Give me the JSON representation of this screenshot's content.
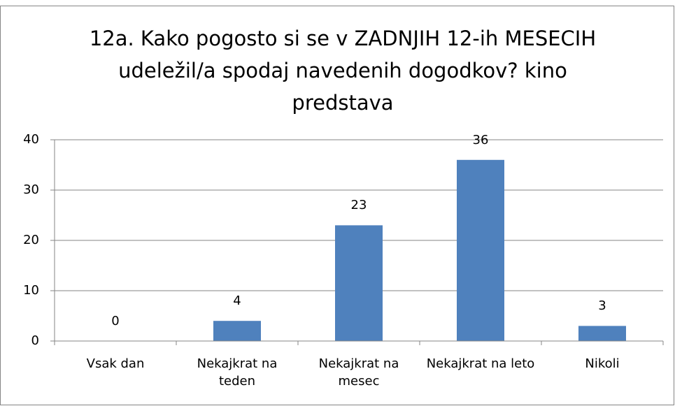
{
  "chart_data": {
    "type": "bar",
    "title": "12a. Kako pogosto si se v ZADNJIH 12-ih MESECIH udeležil/a spodaj navedenih dogodkov? kino predstava",
    "categories": [
      "Vsak dan",
      "Nekajkrat na teden",
      "Nekajkrat na mesec",
      "Nekajkrat na leto",
      "Nikoli"
    ],
    "values": [
      0,
      4,
      23,
      36,
      3
    ],
    "color": "#4f81bd",
    "ylim": [
      0,
      40
    ],
    "yticks": [
      0,
      10,
      20,
      30,
      40
    ],
    "grid": true
  }
}
